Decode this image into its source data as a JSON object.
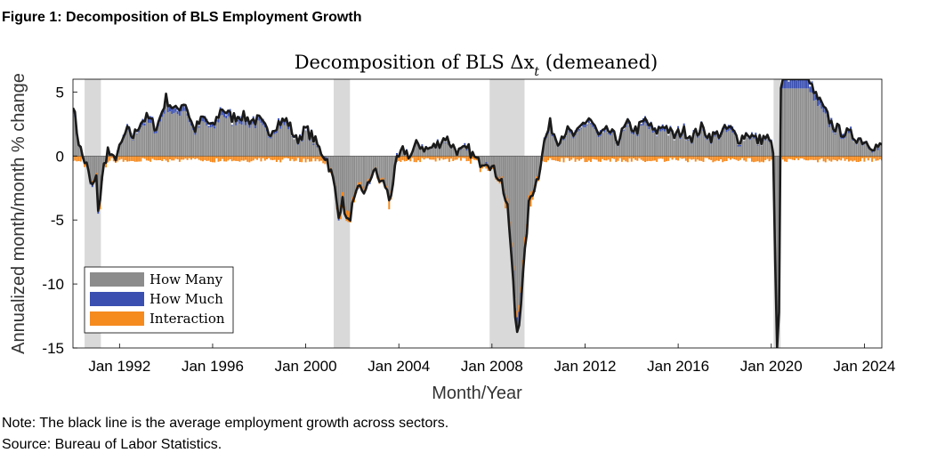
{
  "figure": {
    "title": "Figure 1: Decomposition of BLS Employment Growth",
    "note": "Note: The black line is the average employment growth across sectors.",
    "source": "Source: Bureau of Labor Statistics."
  },
  "colors": {
    "how_many": "#8c8c8c",
    "how_much": "#3a4fb0",
    "interaction": "#f58a1f",
    "line": "#1a1a1a",
    "recession": "#d9d9d9"
  },
  "chart_data": {
    "type": "bar",
    "title": "Decomposition of BLS Δx",
    "title_subscript": "t",
    "title_suffix": " (demeaned)",
    "xlabel": "Month/Year",
    "ylabel": "Annualized month/month % change",
    "xlim": [
      1990.0,
      2024.75
    ],
    "ylim": [
      -15,
      6
    ],
    "yticks": [
      5,
      0,
      -5,
      -10,
      -15
    ],
    "xticks": [
      {
        "value": 1992.0,
        "label": "Jan 1992"
      },
      {
        "value": 1996.0,
        "label": "Jan 1996"
      },
      {
        "value": 2000.0,
        "label": "Jan 2000"
      },
      {
        "value": 2004.0,
        "label": "Jan 2004"
      },
      {
        "value": 2008.0,
        "label": "Jan 2008"
      },
      {
        "value": 2012.0,
        "label": "Jan 2012"
      },
      {
        "value": 2016.0,
        "label": "Jan 2016"
      },
      {
        "value": 2020.0,
        "label": "Jan 2020"
      },
      {
        "value": 2024.0,
        "label": "Jan 2024"
      }
    ],
    "recessions": [
      [
        1990.5,
        1991.2
      ],
      [
        2001.2,
        2001.9
      ],
      [
        2007.9,
        2009.4
      ],
      [
        2020.1,
        2020.4
      ]
    ],
    "legend": [
      {
        "key": "how_many",
        "label": "How Many"
      },
      {
        "key": "how_much",
        "label": "How Much"
      },
      {
        "key": "interaction",
        "label": "Interaction"
      }
    ],
    "legend_position": "bottom-left",
    "avg_line_anchors": [
      [
        1990.0,
        4.2
      ],
      [
        1990.2,
        1.5
      ],
      [
        1990.4,
        0.0
      ],
      [
        1990.6,
        -0.8
      ],
      [
        1990.8,
        -2.5
      ],
      [
        1991.0,
        -1.8
      ],
      [
        1991.1,
        -4.5
      ],
      [
        1991.3,
        -1.0
      ],
      [
        1991.5,
        0.5
      ],
      [
        1991.7,
        -0.4
      ],
      [
        1992.0,
        0.5
      ],
      [
        1992.3,
        2.0
      ],
      [
        1992.6,
        1.5
      ],
      [
        1992.9,
        2.7
      ],
      [
        1993.2,
        3.0
      ],
      [
        1993.6,
        2.2
      ],
      [
        1994.0,
        4.5
      ],
      [
        1994.4,
        3.5
      ],
      [
        1994.8,
        4.3
      ],
      [
        1995.2,
        2.0
      ],
      [
        1995.6,
        3.0
      ],
      [
        1996.0,
        2.2
      ],
      [
        1996.4,
        3.8
      ],
      [
        1996.8,
        3.0
      ],
      [
        1997.2,
        3.2
      ],
      [
        1997.6,
        2.8
      ],
      [
        1998.0,
        2.8
      ],
      [
        1998.4,
        1.8
      ],
      [
        1998.8,
        2.6
      ],
      [
        1999.2,
        2.8
      ],
      [
        1999.6,
        1.2
      ],
      [
        2000.0,
        2.1
      ],
      [
        2000.3,
        1.5
      ],
      [
        2000.6,
        0.5
      ],
      [
        2000.9,
        -0.2
      ],
      [
        2001.2,
        -2.0
      ],
      [
        2001.4,
        -4.5
      ],
      [
        2001.6,
        -3.5
      ],
      [
        2001.8,
        -5.5
      ],
      [
        2002.0,
        -4.0
      ],
      [
        2002.3,
        -2.5
      ],
      [
        2002.6,
        -2.8
      ],
      [
        2002.9,
        -1.0
      ],
      [
        2003.2,
        -2.0
      ],
      [
        2003.4,
        -2.2
      ],
      [
        2003.6,
        -3.5
      ],
      [
        2003.9,
        -0.5
      ],
      [
        2004.2,
        0.5
      ],
      [
        2004.5,
        0.0
      ],
      [
        2004.8,
        1.0
      ],
      [
        2005.2,
        0.5
      ],
      [
        2005.6,
        0.8
      ],
      [
        2006.0,
        1.5
      ],
      [
        2006.3,
        0.8
      ],
      [
        2006.6,
        0.3
      ],
      [
        2007.0,
        0.5
      ],
      [
        2007.4,
        -0.5
      ],
      [
        2007.8,
        -0.3
      ],
      [
        2008.1,
        -1.2
      ],
      [
        2008.4,
        -1.8
      ],
      [
        2008.7,
        -4.5
      ],
      [
        2008.9,
        -9.5
      ],
      [
        2009.05,
        -14.0
      ],
      [
        2009.2,
        -12.5
      ],
      [
        2009.4,
        -8.0
      ],
      [
        2009.6,
        -3.5
      ],
      [
        2009.8,
        -2.5
      ],
      [
        2010.0,
        -1.5
      ],
      [
        2010.2,
        0.8
      ],
      [
        2010.5,
        2.5
      ],
      [
        2010.8,
        1.2
      ],
      [
        2011.2,
        2.0
      ],
      [
        2011.6,
        1.5
      ],
      [
        2011.9,
        2.5
      ],
      [
        2012.2,
        3.0
      ],
      [
        2012.6,
        1.5
      ],
      [
        2013.0,
        2.0
      ],
      [
        2013.4,
        1.2
      ],
      [
        2013.8,
        2.5
      ],
      [
        2014.2,
        2.0
      ],
      [
        2014.6,
        2.8
      ],
      [
        2015.0,
        1.8
      ],
      [
        2015.4,
        2.5
      ],
      [
        2015.8,
        1.5
      ],
      [
        2016.2,
        2.0
      ],
      [
        2016.6,
        1.5
      ],
      [
        2017.0,
        2.2
      ],
      [
        2017.4,
        1.5
      ],
      [
        2017.8,
        1.8
      ],
      [
        2018.2,
        2.2
      ],
      [
        2018.6,
        1.3
      ],
      [
        2019.0,
        1.8
      ],
      [
        2019.4,
        1.2
      ],
      [
        2019.8,
        1.5
      ],
      [
        2020.1,
        0.5
      ],
      [
        2020.22,
        -15.0
      ],
      [
        2020.32,
        -15.0
      ],
      [
        2020.42,
        6.0
      ],
      [
        2021.6,
        6.0
      ],
      [
        2021.8,
        5.0
      ],
      [
        2022.0,
        4.5
      ],
      [
        2022.3,
        3.5
      ],
      [
        2022.6,
        2.5
      ],
      [
        2022.9,
        2.0
      ],
      [
        2023.2,
        1.8
      ],
      [
        2023.6,
        1.5
      ],
      [
        2024.0,
        1.2
      ],
      [
        2024.4,
        0.8
      ],
      [
        2024.7,
        0.7
      ]
    ]
  }
}
